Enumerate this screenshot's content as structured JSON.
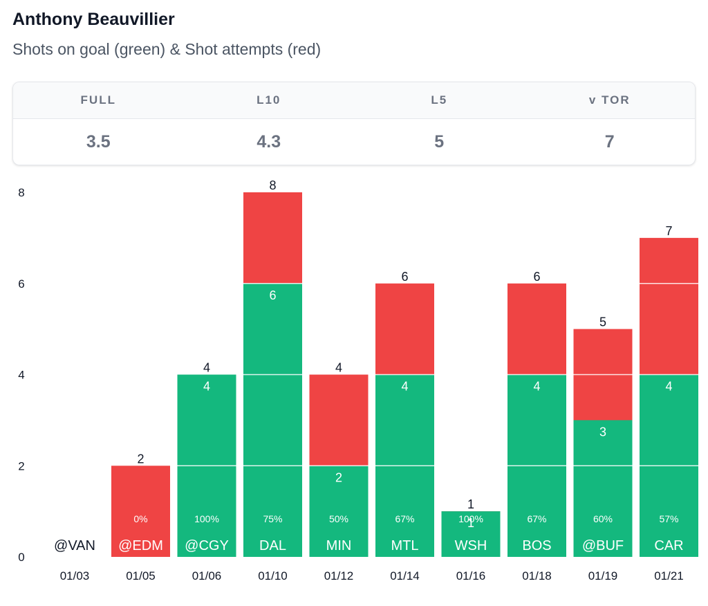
{
  "header": {
    "title": "Anthony Beauvillier",
    "subtitle": "Shots on goal (green) & Shot attempts (red)"
  },
  "stats": [
    {
      "label": "FULL",
      "value": "3.5"
    },
    {
      "label": "L10",
      "value": "4.3"
    },
    {
      "label": "L5",
      "value": "5"
    },
    {
      "label": "v TOR",
      "value": "7"
    }
  ],
  "colors": {
    "attempts": "#ef4444",
    "shots_on_goal": "#14b87e",
    "text": "#111827",
    "muted": "#6b7280"
  },
  "chart_data": {
    "type": "bar",
    "stacked": "overlay",
    "categories": [
      "01/03",
      "01/05",
      "01/06",
      "01/10",
      "01/12",
      "01/14",
      "01/16",
      "01/18",
      "01/19",
      "01/21"
    ],
    "opponents": [
      "@VAN",
      "@EDM",
      "@CGY",
      "DAL",
      "MIN",
      "MTL",
      "WSH",
      "BOS",
      "@BUF",
      "CAR"
    ],
    "series": [
      {
        "name": "Shot attempts",
        "values": [
          0,
          2,
          4,
          8,
          4,
          6,
          1,
          6,
          5,
          7
        ]
      },
      {
        "name": "Shots on goal",
        "values": [
          0,
          0,
          4,
          6,
          2,
          4,
          1,
          4,
          3,
          4
        ]
      }
    ],
    "percentages": [
      "",
      "0%",
      "100%",
      "75%",
      "50%",
      "67%",
      "100%",
      "67%",
      "60%",
      "57%"
    ],
    "ylim": [
      0,
      8
    ],
    "yticks": [
      0,
      2,
      4,
      6,
      8
    ],
    "grid": false,
    "legend": "none"
  }
}
